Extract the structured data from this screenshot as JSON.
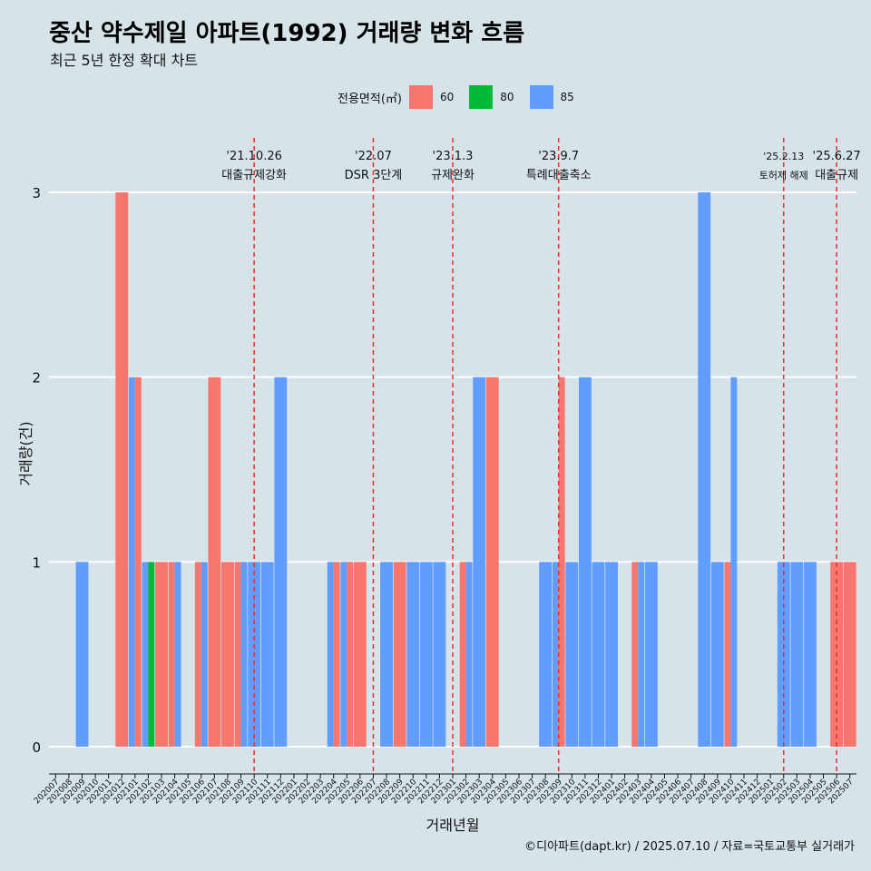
{
  "title": "중산 약수제일 아파트(1992) 거래량 변화 흐름",
  "subtitle": "최근 5년 한정 확대 차트",
  "caption": "©디아파트(dapt.kr) / 2025.07.10 / 자료=국토교통부 실거래가",
  "legend": {
    "title": "전용면적(㎡)",
    "items": [
      {
        "label": "60",
        "color": "#f8766d"
      },
      {
        "label": "80",
        "color": "#00ba38"
      },
      {
        "label": "85",
        "color": "#619cff"
      }
    ]
  },
  "chart_data": {
    "type": "bar",
    "title": "중산 약수제일 아파트(1992) 거래량 변화 흐름",
    "subtitle": "최근 5년 한정 확대 차트",
    "xlabel": "거래년월",
    "ylabel": "거래량(건)",
    "ylim": [
      0,
      3
    ],
    "yticks": [
      0,
      1,
      2,
      3
    ],
    "grid": "horizontal",
    "legend_position": "top",
    "categories": [
      "202007",
      "202008",
      "202009",
      "202010",
      "202011",
      "202012",
      "202101",
      "202102",
      "202103",
      "202104",
      "202105",
      "202106",
      "202107",
      "202108",
      "202109",
      "202110",
      "202111",
      "202112",
      "202201",
      "202202",
      "202203",
      "202204",
      "202205",
      "202206",
      "202207",
      "202208",
      "202209",
      "202210",
      "202211",
      "202212",
      "202301",
      "202302",
      "202303",
      "202304",
      "202305",
      "202306",
      "202307",
      "202308",
      "202309",
      "202310",
      "202311",
      "202312",
      "202401",
      "202402",
      "202403",
      "202404",
      "202405",
      "202406",
      "202407",
      "202408",
      "202409",
      "202410",
      "202411",
      "202412",
      "202501",
      "202502",
      "202503",
      "202504",
      "202505",
      "202506",
      "202507"
    ],
    "bars": [
      {
        "month": "202009",
        "area": "85",
        "value": 1
      },
      {
        "month": "202012",
        "area": "60",
        "value": 3
      },
      {
        "month": "202101",
        "area": "85",
        "value": 2
      },
      {
        "month": "202101",
        "area": "60",
        "value": 2
      },
      {
        "month": "202102",
        "area": "85",
        "value": 1
      },
      {
        "month": "202102",
        "area": "80",
        "value": 1
      },
      {
        "month": "202103",
        "area": "60",
        "value": 1
      },
      {
        "month": "202104",
        "area": "60",
        "value": 1
      },
      {
        "month": "202104",
        "area": "85",
        "value": 1
      },
      {
        "month": "202106",
        "area": "60",
        "value": 1
      },
      {
        "month": "202106",
        "area": "85",
        "value": 1
      },
      {
        "month": "202107",
        "area": "60",
        "value": 2
      },
      {
        "month": "202108",
        "area": "60",
        "value": 1
      },
      {
        "month": "202109",
        "area": "60",
        "value": 1
      },
      {
        "month": "202109",
        "area": "85",
        "value": 1
      },
      {
        "month": "202110",
        "area": "85",
        "value": 1
      },
      {
        "month": "202111",
        "area": "85",
        "value": 1
      },
      {
        "month": "202112",
        "area": "85",
        "value": 2
      },
      {
        "month": "202204",
        "area": "85",
        "value": 1
      },
      {
        "month": "202204",
        "area": "60",
        "value": 1
      },
      {
        "month": "202205",
        "area": "85",
        "value": 1
      },
      {
        "month": "202205",
        "area": "60",
        "value": 1
      },
      {
        "month": "202206",
        "area": "60",
        "value": 1
      },
      {
        "month": "202208",
        "area": "85",
        "value": 1
      },
      {
        "month": "202209",
        "area": "60",
        "value": 1
      },
      {
        "month": "202210",
        "area": "85",
        "value": 1
      },
      {
        "month": "202211",
        "area": "85",
        "value": 1
      },
      {
        "month": "202212",
        "area": "85",
        "value": 1
      },
      {
        "month": "202302",
        "area": "60",
        "value": 1
      },
      {
        "month": "202302",
        "area": "85",
        "value": 1
      },
      {
        "month": "202303",
        "area": "85",
        "value": 2
      },
      {
        "month": "202304",
        "area": "60",
        "value": 2
      },
      {
        "month": "202308",
        "area": "85",
        "value": 1
      },
      {
        "month": "202309",
        "area": "85",
        "value": 1
      },
      {
        "month": "202309",
        "area": "60",
        "value": 2
      },
      {
        "month": "202310",
        "area": "85",
        "value": 1
      },
      {
        "month": "202311",
        "area": "85",
        "value": 2
      },
      {
        "month": "202312",
        "area": "85",
        "value": 1
      },
      {
        "month": "202401",
        "area": "85",
        "value": 1
      },
      {
        "month": "202403",
        "area": "60",
        "value": 1
      },
      {
        "month": "202403",
        "area": "85",
        "value": 1
      },
      {
        "month": "202404",
        "area": "85",
        "value": 1
      },
      {
        "month": "202408",
        "area": "85",
        "value": 3
      },
      {
        "month": "202409",
        "area": "85",
        "value": 1
      },
      {
        "month": "202410",
        "area": "60",
        "value": 1
      },
      {
        "month": "202410",
        "area": "85",
        "value": 2
      },
      {
        "month": "202502",
        "area": "85",
        "value": 1
      },
      {
        "month": "202503",
        "area": "85",
        "value": 1
      },
      {
        "month": "202504",
        "area": "85",
        "value": 1
      },
      {
        "month": "202506",
        "area": "60",
        "value": 1
      },
      {
        "month": "202507",
        "area": "60",
        "value": 1
      }
    ],
    "annotations": [
      {
        "month": "202110",
        "date": "'21.10.26",
        "label": "대출규제강화"
      },
      {
        "month": "202207",
        "date": "'22.07",
        "label": "DSR 3단계"
      },
      {
        "month": "202301",
        "date": "'23.1.3",
        "label": "규제완화"
      },
      {
        "month": "202309",
        "date": "'23.9.7",
        "label": "특례대출축소"
      },
      {
        "month": "202502",
        "date": "'25.2.13",
        "label": "토허제 해제"
      },
      {
        "month": "202506",
        "date": "'25.6.27",
        "label": "대출규제"
      }
    ]
  }
}
